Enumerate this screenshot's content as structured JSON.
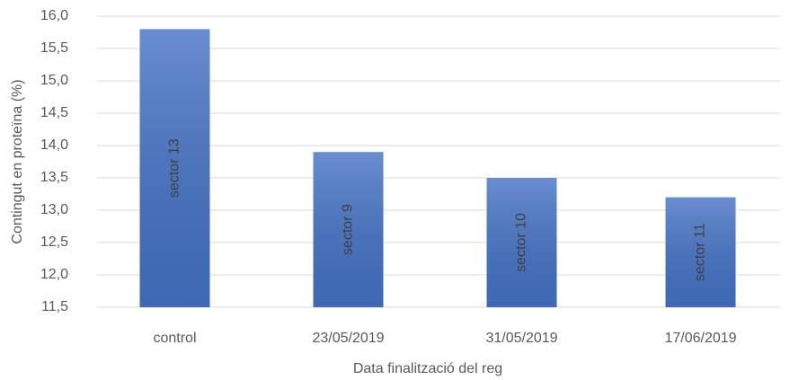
{
  "chart_data": {
    "type": "bar",
    "x_label": "Data finalització del reg",
    "y_label": "Contingut en proteïna (%)",
    "categories": [
      "control",
      "23/05/2019",
      "31/05/2019",
      "17/06/2019"
    ],
    "values": [
      15.8,
      13.9,
      13.5,
      13.2
    ],
    "annotations": [
      "sector 13",
      "sector 9",
      "sector 10",
      "sector 11"
    ],
    "color": "#4472c4",
    "ylim": [
      11.5,
      16.0
    ],
    "yticks": [
      {
        "value": 11.5,
        "label": "11,5"
      },
      {
        "value": 12.0,
        "label": "12,0"
      },
      {
        "value": 12.5,
        "label": "12,5"
      },
      {
        "value": 13.0,
        "label": "13,0"
      },
      {
        "value": 13.5,
        "label": "13,5"
      },
      {
        "value": 14.0,
        "label": "14,0"
      },
      {
        "value": 14.5,
        "label": "14,5"
      },
      {
        "value": 15.0,
        "label": "15,0"
      },
      {
        "value": 15.5,
        "label": "15,5"
      },
      {
        "value": 16.0,
        "label": "16,0"
      }
    ],
    "grid": true
  }
}
